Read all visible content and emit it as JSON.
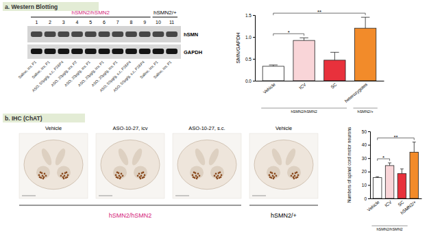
{
  "panel_a": {
    "header": "a. Western Blotting",
    "bands": [
      "hSMN",
      "GAPDH"
    ],
    "groups": [
      {
        "label": "hSMN2/hSMN2",
        "color": "#d4237a",
        "lanes": [
          {
            "number": 1,
            "label": "Saline, icv, P1"
          },
          {
            "number": 2,
            "label": "Saline, icv, P1"
          },
          {
            "number": 3,
            "label": "ASO, 50μg/g, s.c, P2&P4"
          },
          {
            "number": 4,
            "label": "ASO, 20μg/g, icv, P2"
          },
          {
            "number": 5,
            "label": "ASO, 20μg/g, icv, P1"
          },
          {
            "number": 6,
            "label": "ASO, 20μg/g, icv, P1"
          },
          {
            "number": 7,
            "label": "ASO, 20μg/g, icv, P1"
          },
          {
            "number": 8,
            "label": "ASO, 50μg/g, s.c, P2&P4"
          },
          {
            "number": 9,
            "label": "ASO, 50μg/g, s.c, P2&P4"
          }
        ]
      },
      {
        "label": "hSMN2/+",
        "color": "#000000",
        "lanes": [
          {
            "number": 10,
            "label": "Saline, icv, P1"
          },
          {
            "number": 11,
            "label": "Saline, icv, P1"
          }
        ]
      }
    ]
  },
  "panel_b": {
    "header": "b. IHC (ChAT)",
    "groups": [
      {
        "label": "hSMN2/hSMN2",
        "color": "#d4237a",
        "images": [
          {
            "title": "Vehicle"
          },
          {
            "title": "ASO-10-27, icv"
          },
          {
            "title": "ASO-10-27, s.c."
          }
        ]
      },
      {
        "label": "hSMN2/+",
        "color": "#000000",
        "images": [
          {
            "title": "Vehicle"
          }
        ]
      }
    ]
  },
  "chart_data": [
    {
      "type": "bar",
      "y_label": "SMN/GAPDH",
      "categories": [
        "Vehicle",
        "ICV",
        "SC",
        "heterozygotes"
      ],
      "values": [
        0.33,
        0.92,
        0.47,
        1.2
      ],
      "errors": [
        0.03,
        0.06,
        0.18,
        0.25
      ],
      "colors": [
        "#ffffff",
        "#f9d5d8",
        "#e8313c",
        "#f28b2a"
      ],
      "ylim": [
        0,
        1.5
      ],
      "yticks": [
        {
          "value": 0,
          "label": "0.0"
        },
        {
          "value": 0.5,
          "label": "0.5"
        },
        {
          "value": 1,
          "label": "1.0"
        },
        {
          "value": 1.5,
          "label": "1.5"
        }
      ],
      "groups": [
        {
          "label": "hSMN2/hSMN2",
          "categories": [
            "Vehicle",
            "ICV",
            "SC"
          ]
        },
        {
          "label": "hSMN2/+",
          "categories": [
            "heterozygotes"
          ]
        }
      ],
      "significance": [
        {
          "label": "*",
          "between": [
            "Vehicle",
            "ICV"
          ]
        },
        {
          "label": "**",
          "between": [
            "Vehicle",
            "heterozygotes"
          ]
        }
      ]
    },
    {
      "type": "bar",
      "y_label": "Numbers of spinal cord motor neurons",
      "categories": [
        "Vehicle",
        "ICV",
        "SC",
        "hSMN2/+"
      ],
      "values": [
        15.5,
        24.5,
        18.5,
        34.5
      ],
      "errors": [
        0.7,
        2,
        3.5,
        7.5
      ],
      "colors": [
        "#ffffff",
        "#f9d5d8",
        "#e8313c",
        "#f28b2a"
      ],
      "ylim": [
        0,
        50
      ],
      "yticks": [
        0,
        10,
        20,
        30,
        40,
        50
      ],
      "groups": [
        {
          "label": "hSMN2/hSMN2",
          "categories": [
            "Vehicle",
            "ICV",
            "SC"
          ]
        }
      ],
      "significance": [
        {
          "label": "*",
          "between": [
            "Vehicle",
            "ICV"
          ]
        },
        {
          "label": "**",
          "between": [
            "Vehicle",
            "hSMN2/+"
          ]
        }
      ]
    }
  ]
}
